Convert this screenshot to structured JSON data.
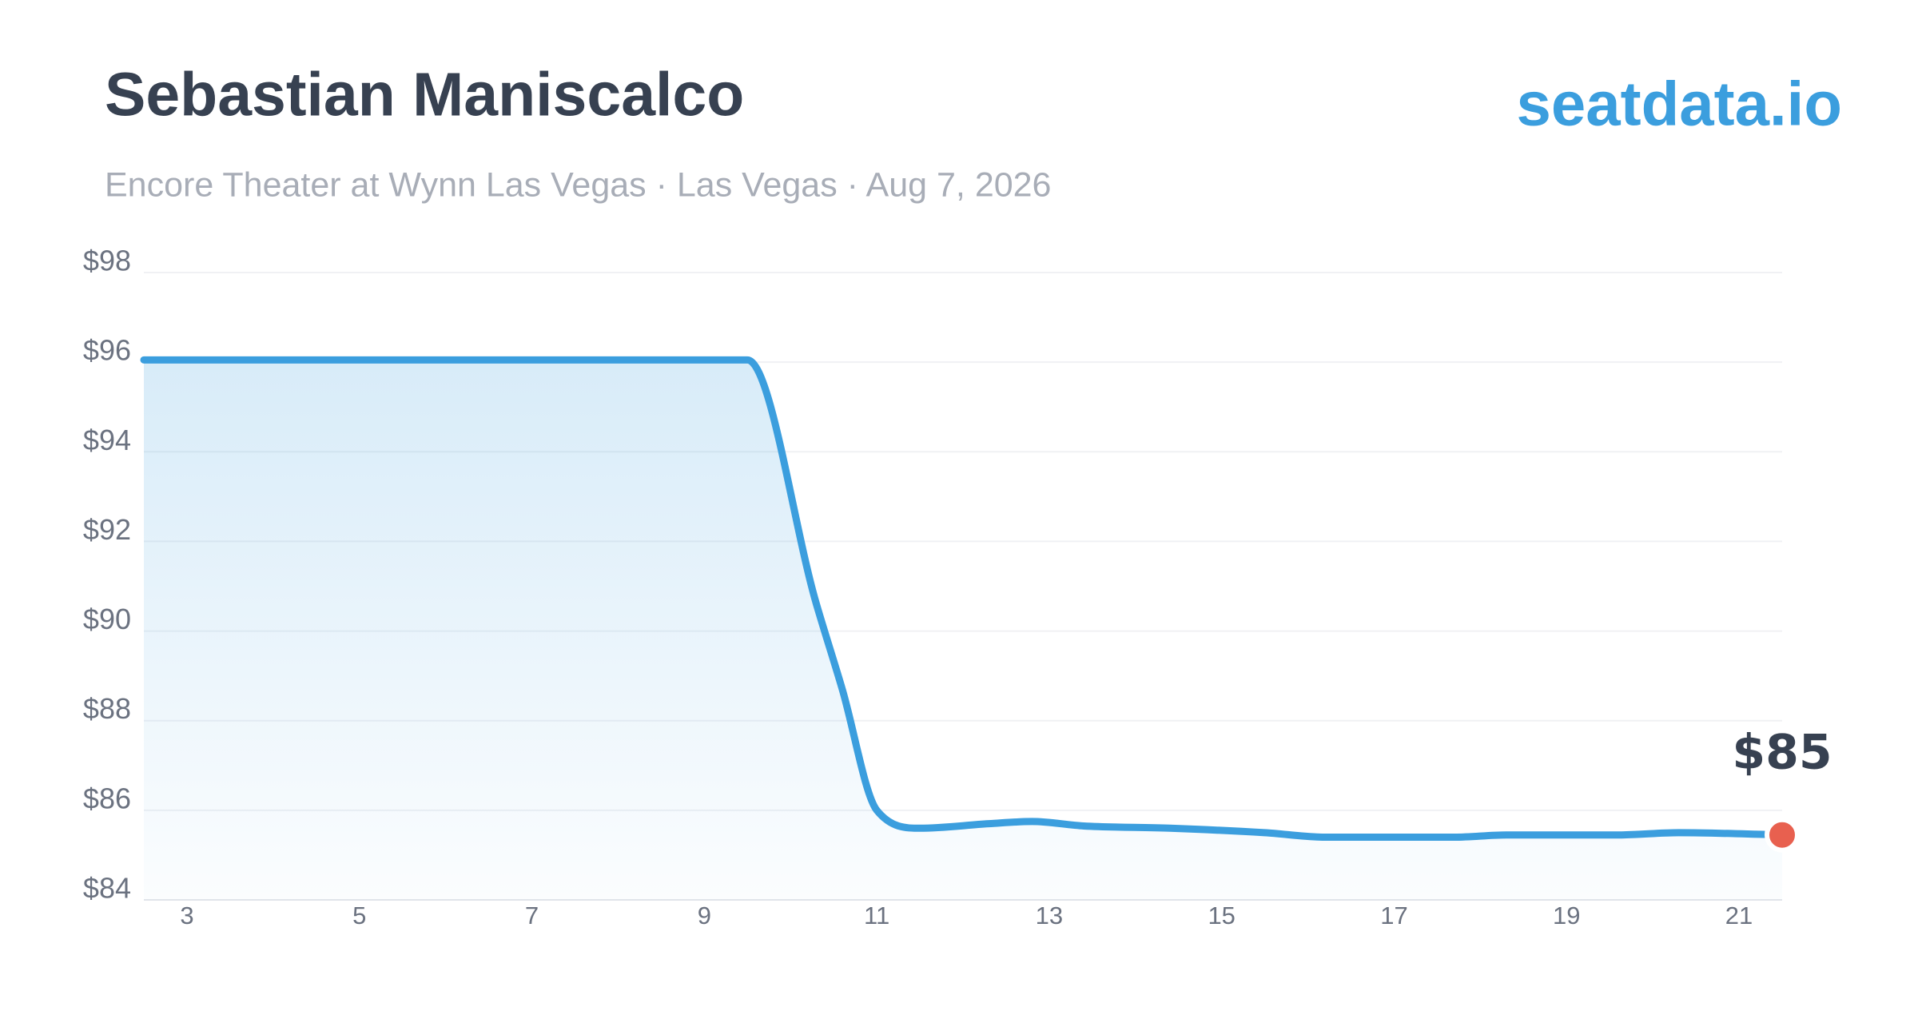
{
  "chart_data": {
    "type": "line",
    "title": "Sebastian Maniscalco",
    "subtitle": "Encore Theater at Wynn Las Vegas · Las Vegas · Aug 7, 2026",
    "watermark": "seatdata.io",
    "x": [
      2.5,
      4,
      6,
      8,
      9.5,
      10.3,
      10.6,
      11.0,
      11.5,
      12.3,
      12.8,
      13.4,
      14.4,
      15.5,
      16.2,
      17.7,
      18.3,
      19.6,
      20.3,
      21.5
    ],
    "series": [
      {
        "color": "#3b9ede",
        "values": [
          96.05,
          96.05,
          96.05,
          96.05,
          96.05,
          90.6,
          88.7,
          86.0,
          85.6,
          85.7,
          85.75,
          85.65,
          85.6,
          85.5,
          85.4,
          85.4,
          85.45,
          85.45,
          85.5,
          85.45
        ],
        "value_labels": [
          null,
          null,
          null,
          null,
          null,
          null,
          null,
          null,
          null,
          null,
          null,
          null,
          null,
          null,
          null,
          null,
          null,
          null,
          null,
          "$85"
        ],
        "marker_color": "#e8604f"
      }
    ],
    "xlim": [
      2.5,
      21.5
    ],
    "ylim": [
      84,
      98
    ],
    "xticks": [
      3,
      5,
      7,
      9,
      11,
      13,
      15,
      17,
      19,
      21
    ],
    "yticks": [
      {
        "value": 84,
        "label": "$84"
      },
      {
        "value": 86,
        "label": "$86"
      },
      {
        "value": 88,
        "label": "$88"
      },
      {
        "value": 90,
        "label": "$90"
      },
      {
        "value": 92,
        "label": "$92"
      },
      {
        "value": 94,
        "label": "$94"
      },
      {
        "value": 96,
        "label": "$96"
      },
      {
        "value": 98,
        "label": "$98"
      }
    ],
    "grid": true
  }
}
